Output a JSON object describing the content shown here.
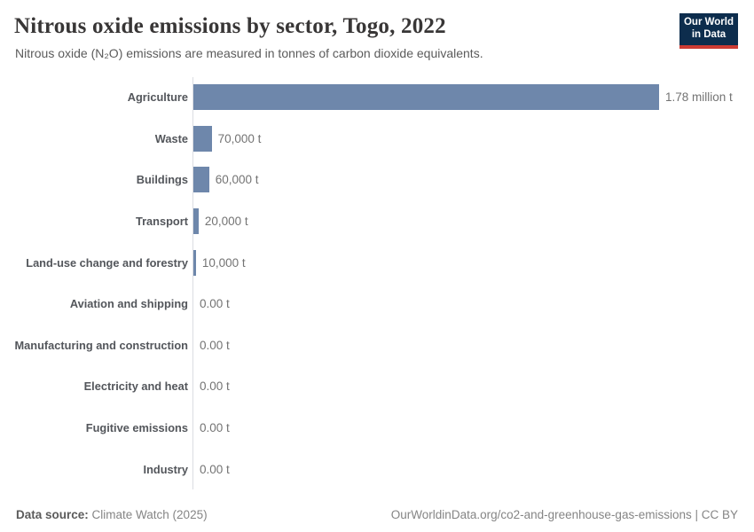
{
  "header": {
    "title": "Nitrous oxide emissions by sector, Togo, 2022",
    "subtitle": "Nitrous oxide (N₂O) emissions are measured in tonnes of carbon dioxide equivalents.",
    "logo_line1": "Our World",
    "logo_line2": "in Data"
  },
  "chart_data": {
    "type": "bar",
    "orientation": "horizontal",
    "title": "Nitrous oxide emissions by sector, Togo, 2022",
    "unit": "tonnes of carbon dioxide equivalents",
    "categories": [
      "Agriculture",
      "Waste",
      "Buildings",
      "Transport",
      "Land-use change and forestry",
      "Aviation and shipping",
      "Manufacturing and construction",
      "Electricity and heat",
      "Fugitive emissions",
      "Industry"
    ],
    "values": [
      1780000,
      70000,
      60000,
      20000,
      10000,
      0,
      0,
      0,
      0,
      0
    ],
    "value_labels": [
      "1.78 million t",
      "70,000 t",
      "60,000 t",
      "20,000 t",
      "10,000 t",
      "0.00 t",
      "0.00 t",
      "0.00 t",
      "0.00 t",
      "0.00 t"
    ],
    "xmax": 1780000,
    "legend": "none",
    "grid": "off"
  },
  "colors": {
    "bar": "#6e87ab",
    "logo_bg": "#0d2d4d",
    "logo_accent": "#cc3b33"
  },
  "footer": {
    "source_label": "Data source:",
    "source_value": " Climate Watch (2025)",
    "url": "OurWorldinData.org/co2-and-greenhouse-gas-emissions",
    "license": " | CC BY"
  }
}
